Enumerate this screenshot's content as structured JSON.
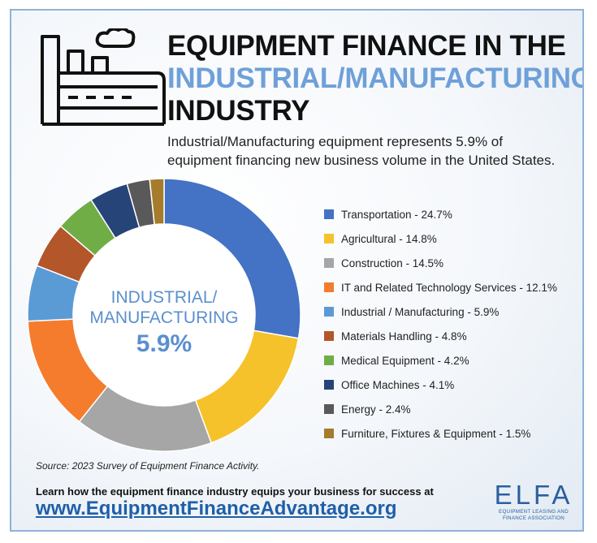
{
  "header": {
    "title_line1": "EQUIPMENT FINANCE IN THE",
    "title_line2": "INDUSTRIAL/MANUFACTURING",
    "title_line3": "INDUSTRY",
    "subtitle_line1": "Industrial/Manufacturing equipment represents 5.9% of",
    "subtitle_line2": "equipment financing new business volume in the United States.",
    "icon": "factory-icon"
  },
  "chart_data": {
    "type": "pie",
    "donut": true,
    "center_line1": "INDUSTRIAL/",
    "center_line2": "MANUFACTURING",
    "center_value": "5.9%",
    "legend_position": "right",
    "slices": [
      {
        "label": "Transportation - 24.7%",
        "value": 24.7,
        "color": "#4472c4"
      },
      {
        "label": "Agricultural - 14.8%",
        "value": 14.8,
        "color": "#f6c22b"
      },
      {
        "label": "Construction - 14.5%",
        "value": 14.5,
        "color": "#a6a6a6"
      },
      {
        "label": "IT and Related Technology Services - 12.1%",
        "value": 12.1,
        "color": "#f47c2c"
      },
      {
        "label": "Industrial / Manufacturing - 5.9%",
        "value": 5.9,
        "color": "#5b9bd5"
      },
      {
        "label": "Materials Handling - 4.8%",
        "value": 4.8,
        "color": "#b3562a"
      },
      {
        "label": "Medical Equipment - 4.2%",
        "value": 4.2,
        "color": "#70ad47"
      },
      {
        "label": "Office Machines - 4.1%",
        "value": 4.1,
        "color": "#264478"
      },
      {
        "label": "Energy - 2.4%",
        "value": 2.4,
        "color": "#595959"
      },
      {
        "label": "Furniture, Fixtures & Equipment - 1.5%",
        "value": 1.5,
        "color": "#a47c2c"
      }
    ]
  },
  "footer": {
    "source": "Source: 2023 Survey of Equipment Finance Activity.",
    "cta_text": "Learn how the equipment finance industry equips your business for success at",
    "cta_link": "www.EquipmentFinanceAdvantage.org",
    "logo_name": "ELFA",
    "logo_tag_line1": "EQUIPMENT LEASING AND",
    "logo_tag_line2": "FINANCE ASSOCIATION"
  },
  "colors": {
    "accent_blue": "#6fa0d8",
    "link_blue": "#1f5fa8",
    "center_text": "#5b8fcf"
  }
}
